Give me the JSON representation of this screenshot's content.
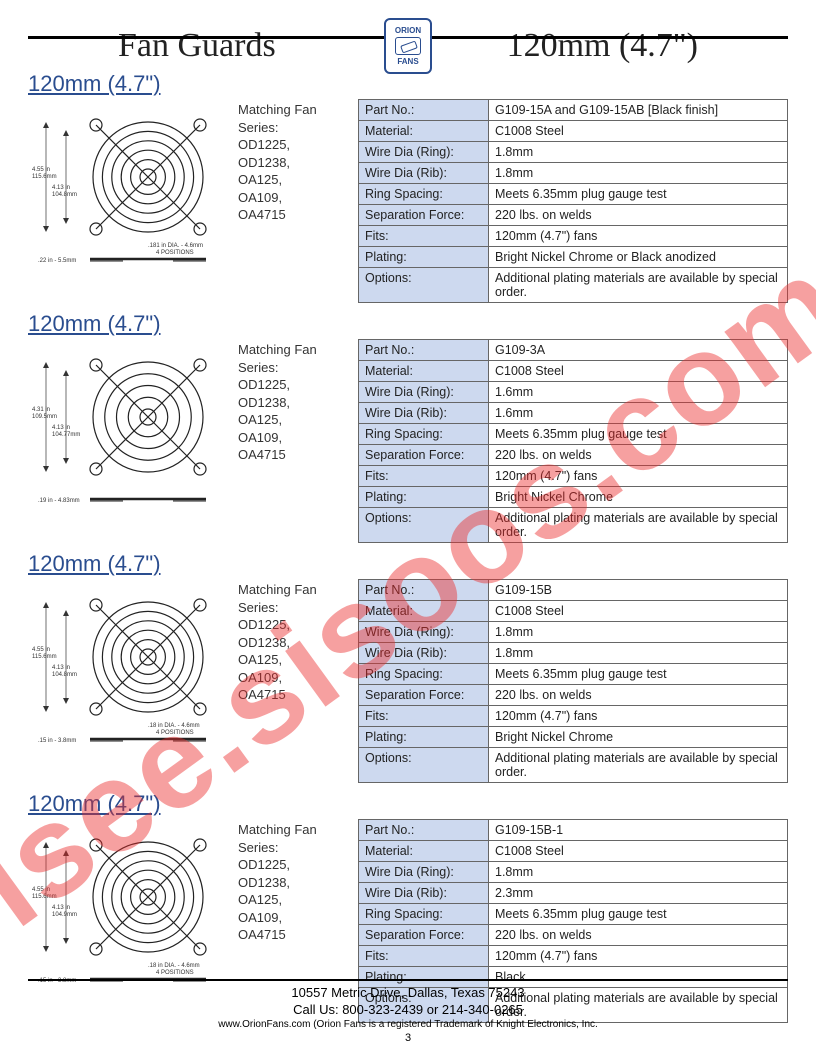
{
  "header": {
    "left": "Fan Guards",
    "right": "120mm (4.7\")"
  },
  "logo": {
    "top": "ORION",
    "bottom": "FANS"
  },
  "watermark": "isee.sisoos.com",
  "matching_label": "Matching Fan Series:",
  "matching_series": [
    "OD1225,",
    "OD1238,",
    "OA125,",
    "OA109,",
    "OA4715"
  ],
  "sections": [
    {
      "title": "120mm (4.7\")",
      "rings": 6,
      "dims": {
        "outer": "4.55 in\n115.6mm",
        "inner": "4.13 in\n104.8mm",
        "note": ".181 in DIA. - 4.6mm\n4 POSITIONS",
        "height": ".22 in - 5.5mm"
      },
      "specs": [
        [
          "Part No.:",
          "G109-15A and G109-15AB [Black finish]"
        ],
        [
          "Material:",
          "C1008 Steel"
        ],
        [
          "Wire Dia (Ring):",
          "1.8mm"
        ],
        [
          "Wire Dia (Rib):",
          "1.8mm"
        ],
        [
          "Ring Spacing:",
          "Meets 6.35mm plug gauge test"
        ],
        [
          "Separation Force:",
          "220 lbs. on welds"
        ],
        [
          "Fits:",
          "120mm (4.7\") fans"
        ],
        [
          "Plating:",
          "Bright Nickel Chrome or Black anodized"
        ],
        [
          "Options:",
          "Additional plating materials are available by special order."
        ]
      ]
    },
    {
      "title": "120mm (4.7\")",
      "rings": 5,
      "dims": {
        "outer": "4.31 in\n109.5mm",
        "inner": "4.13 in\n104.77mm",
        "note": "",
        "height": ".19 in - 4.83mm"
      },
      "specs": [
        [
          "Part No.:",
          "G109-3A"
        ],
        [
          "Material:",
          "C1008 Steel"
        ],
        [
          "Wire Dia (Ring):",
          "1.6mm"
        ],
        [
          "Wire Dia (Rib):",
          "1.6mm"
        ],
        [
          "Ring Spacing:",
          "Meets 6.35mm plug gauge test"
        ],
        [
          "Separation Force:",
          "220 lbs. on welds"
        ],
        [
          "Fits:",
          "120mm (4.7\") fans"
        ],
        [
          "Plating:",
          "Bright Nickel Chrome"
        ],
        [
          "Options:",
          "Additional plating materials are available by special order."
        ]
      ]
    },
    {
      "title": "120mm (4.7\")",
      "rings": 6,
      "dims": {
        "outer": "4.55 in\n115.6mm",
        "inner": "4.13 in\n104.8mm",
        "note": ".18 in DIA. - 4.6mm\n4 POSITIONS",
        "height": ".15 in - 3.8mm"
      },
      "specs": [
        [
          "Part No.:",
          "G109-15B"
        ],
        [
          "Material:",
          "C1008 Steel"
        ],
        [
          "Wire Dia (Ring):",
          "1.8mm"
        ],
        [
          "Wire Dia (Rib):",
          "1.8mm"
        ],
        [
          "Ring Spacing:",
          "Meets 6.35mm plug gauge test"
        ],
        [
          "Separation Force:",
          "220 lbs. on welds"
        ],
        [
          "Fits:",
          "120mm (4.7\") fans"
        ],
        [
          "Plating:",
          "Bright Nickel Chrome"
        ],
        [
          "Options:",
          "Additional plating materials are available by special order."
        ]
      ]
    },
    {
      "title": "120mm (4.7\")",
      "rings": 6,
      "dims": {
        "outer": "4.55 in\n115.6mm",
        "inner": "4.13 in\n104.9mm",
        "note": ".18 in DIA. - 4.6mm\n4 POSITIONS",
        "height": ".15 in - 3.8mm"
      },
      "specs": [
        [
          "Part No.:",
          "G109-15B-1"
        ],
        [
          "Material:",
          "C1008 Steel"
        ],
        [
          "Wire Dia (Ring):",
          "1.8mm"
        ],
        [
          "Wire Dia (Rib):",
          "2.3mm"
        ],
        [
          "Ring Spacing:",
          "Meets 6.35mm plug gauge test"
        ],
        [
          "Separation Force:",
          "220 lbs. on welds"
        ],
        [
          "Fits:",
          "120mm (4.7\") fans"
        ],
        [
          "Plating:",
          "Black"
        ],
        [
          "Options:",
          "Additional plating materials are available by special order."
        ]
      ]
    }
  ],
  "footer": {
    "address": "10557 Metric Drive, Dallas, Texas 75243",
    "phone": "Call Us: 800-323-2439 or 214-340-0265",
    "trademark": "www.OrionFans.com (Orion Fans is a registered Trademark of Knight Electronics, Inc.",
    "page": "3"
  },
  "colors": {
    "header_blue": "#2a4d8f",
    "table_key_bg": "#cdd9ef",
    "border": "#666666",
    "watermark": "rgba(236,44,44,0.45)"
  },
  "typography": {
    "header_fontsize": 34,
    "section_title_fontsize": 22,
    "body_fontsize": 13,
    "table_fontsize": 12.5
  }
}
